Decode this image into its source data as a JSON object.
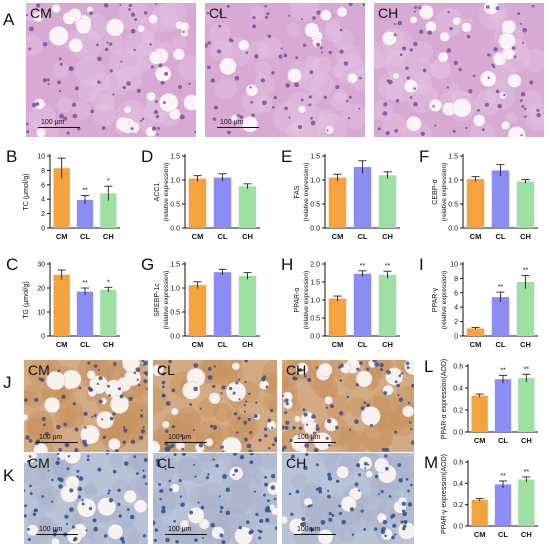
{
  "figure": {
    "he_images": {
      "letter": "A",
      "panels": [
        {
          "label": "CM",
          "scale_label": "100 μm"
        },
        {
          "label": "CL",
          "scale_label": "100 μm"
        },
        {
          "label": "CH",
          "scale_label": ""
        }
      ]
    },
    "ihc_rows": [
      {
        "letter": "J",
        "panels": [
          {
            "label": "CM",
            "scale_label": "100 μm"
          },
          {
            "label": "CL",
            "scale_label": "100 μm"
          },
          {
            "label": "CH",
            "scale_label": "100 μm"
          }
        ]
      },
      {
        "letter": "K",
        "panels": [
          {
            "label": "CM",
            "scale_label": "100 μm"
          },
          {
            "label": "CL",
            "scale_label": "100 μm"
          },
          {
            "label": "CH",
            "scale_label": "100 μm"
          }
        ]
      }
    ],
    "colors": {
      "CM": "#f5a33f",
      "CL": "#8d8cf5",
      "CH": "#9ee0a3",
      "he_tissue": "#d8a9d3",
      "ihc_tissue": "#d3aa82",
      "ihc_blue_tissue": "#b8c3d8"
    }
  },
  "chart_data": [
    {
      "id": "B",
      "type": "bar",
      "categories": [
        "CM",
        "CL",
        "CH"
      ],
      "values": [
        8.3,
        3.9,
        4.8
      ],
      "errors": [
        1.4,
        0.6,
        1.0
      ],
      "significance": [
        "",
        "**",
        "*"
      ],
      "ylabel": "TC (μmol/g)",
      "ylabel2": "",
      "ylim": [
        0,
        10
      ],
      "yticks": [
        0,
        2,
        4,
        6,
        8,
        10
      ]
    },
    {
      "id": "D",
      "type": "bar",
      "categories": [
        "CM",
        "CL",
        "CH"
      ],
      "values": [
        1.03,
        1.05,
        0.87
      ],
      "errors": [
        0.06,
        0.08,
        0.05
      ],
      "significance": [
        "",
        "",
        ""
      ],
      "ylabel": "ACC1",
      "ylabel2": "(relative expression)",
      "ylim": [
        0,
        1.5
      ],
      "yticks": [
        0.0,
        0.5,
        1.0,
        1.5
      ]
    },
    {
      "id": "E",
      "type": "bar",
      "categories": [
        "CM",
        "CL",
        "CH"
      ],
      "values": [
        1.05,
        1.27,
        1.1
      ],
      "errors": [
        0.07,
        0.13,
        0.07
      ],
      "significance": [
        "",
        "",
        ""
      ],
      "ylabel": "FAS",
      "ylabel2": "(relative expression)",
      "ylim": [
        0,
        1.5
      ],
      "yticks": [
        0.0,
        0.5,
        1.0,
        1.5
      ]
    },
    {
      "id": "F",
      "type": "bar",
      "categories": [
        "CM",
        "CL",
        "CH"
      ],
      "values": [
        1.02,
        1.2,
        0.97
      ],
      "errors": [
        0.05,
        0.12,
        0.04
      ],
      "significance": [
        "",
        "",
        ""
      ],
      "ylabel": "CEBP-α",
      "ylabel2": "(relative expression)",
      "ylim": [
        0,
        1.5
      ],
      "yticks": [
        0.0,
        0.5,
        1.0,
        1.5
      ]
    },
    {
      "id": "C",
      "type": "bar",
      "categories": [
        "CM",
        "CL",
        "CH"
      ],
      "values": [
        25.5,
        18.5,
        19.3
      ],
      "errors": [
        2.0,
        1.5,
        1.0
      ],
      "significance": [
        "",
        "**",
        "*"
      ],
      "ylabel": "TG (μmol/g)",
      "ylabel2": "",
      "ylim": [
        0,
        30
      ],
      "yticks": [
        0,
        10,
        20,
        30
      ]
    },
    {
      "id": "G",
      "type": "bar",
      "categories": [
        "CM",
        "CL",
        "CH"
      ],
      "values": [
        1.06,
        1.33,
        1.25
      ],
      "errors": [
        0.07,
        0.06,
        0.07
      ],
      "significance": [
        "",
        "",
        ""
      ],
      "ylabel": "SREBP-1c",
      "ylabel2": "(relative expression)",
      "ylim": [
        0,
        1.5
      ],
      "yticks": [
        0.0,
        0.5,
        1.0,
        1.5
      ]
    },
    {
      "id": "H",
      "type": "bar",
      "categories": [
        "CM",
        "CL",
        "CH"
      ],
      "values": [
        1.04,
        1.73,
        1.7
      ],
      "errors": [
        0.07,
        0.08,
        0.1
      ],
      "significance": [
        "",
        "**",
        "**"
      ],
      "ylabel": "PPAR-α",
      "ylabel2": "(relative expression)",
      "ylim": [
        0,
        2.0
      ],
      "yticks": [
        0.0,
        0.5,
        1.0,
        1.5,
        2.0
      ]
    },
    {
      "id": "I",
      "type": "bar",
      "categories": [
        "CM",
        "CL",
        "CH"
      ],
      "values": [
        1.05,
        5.4,
        7.5
      ],
      "errors": [
        0.12,
        0.7,
        0.9
      ],
      "significance": [
        "",
        "**",
        "**"
      ],
      "ylabel": "PPAR-γ",
      "ylabel2": "(relative expression)",
      "ylim": [
        0,
        10
      ],
      "yticks": [
        0,
        2,
        4,
        6,
        8,
        10
      ]
    },
    {
      "id": "L",
      "type": "bar",
      "categories": [
        "CM",
        "CL",
        "CH"
      ],
      "values": [
        0.33,
        0.48,
        0.49
      ],
      "errors": [
        0.015,
        0.035,
        0.035
      ],
      "significance": [
        "",
        "**",
        "**"
      ],
      "ylabel": "PPAR-α expression(AOD)",
      "ylabel2": "",
      "ylim": [
        0,
        0.6
      ],
      "yticks": [
        0.0,
        0.2,
        0.4,
        0.6
      ]
    },
    {
      "id": "M",
      "type": "bar",
      "categories": [
        "CM",
        "CL",
        "CH"
      ],
      "values": [
        0.245,
        0.39,
        0.435
      ],
      "errors": [
        0.012,
        0.032,
        0.025
      ],
      "significance": [
        "",
        "**",
        "**"
      ],
      "ylabel": "PPAR-γ expression(AOD)",
      "ylabel2": "",
      "ylim": [
        0,
        0.6
      ],
      "yticks": [
        0.0,
        0.2,
        0.4,
        0.6
      ]
    }
  ]
}
